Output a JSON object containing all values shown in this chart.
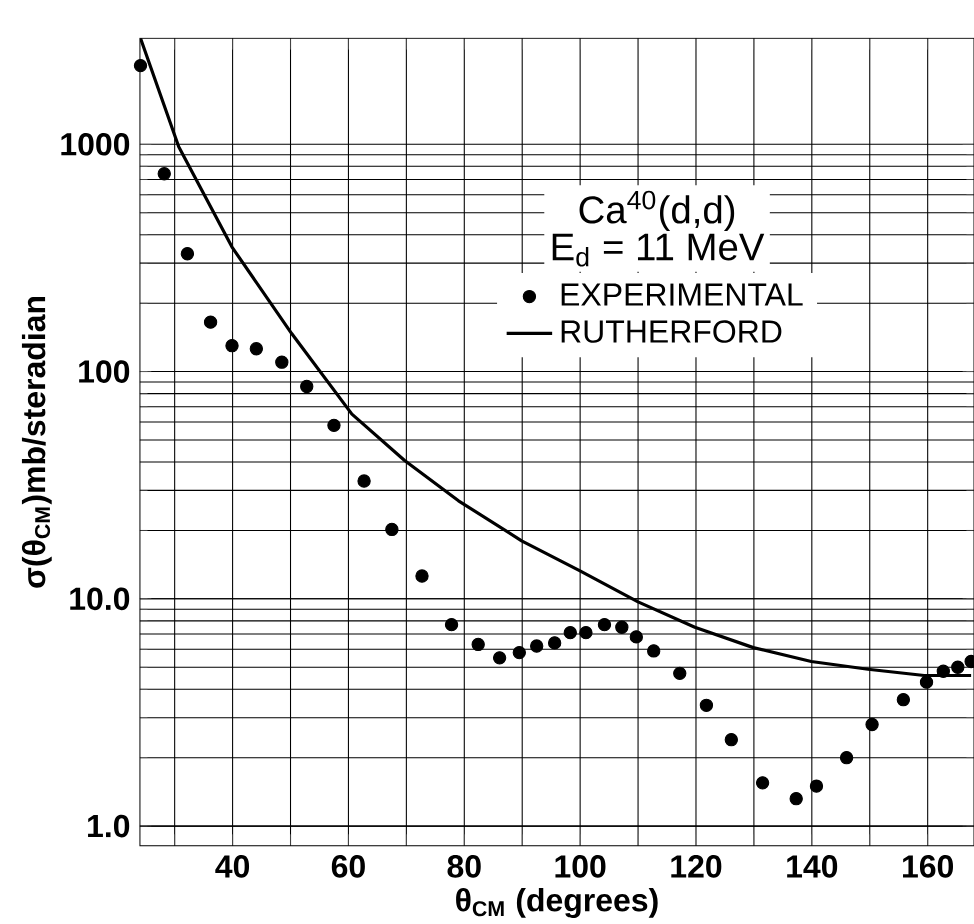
{
  "chart_data": {
    "type": "scatter",
    "xlabel": "θ$_{CM}$ (degrees)",
    "ylabel": "σ(θ$_{CM}$)mb/steradian",
    "annotations": [
      "Ca$^{40}$(d,d)",
      "E$_{d}$ = 11 MeV"
    ],
    "xlim": [
      24,
      168
    ],
    "ylim": [
      0.82,
      2930
    ],
    "log": true,
    "grid": true,
    "legend": "top right",
    "xticks": [
      {
        "value": 30,
        "label": null
      },
      40,
      {
        "value": 50,
        "label": null
      },
      60,
      {
        "value": 70,
        "label": null
      },
      80,
      {
        "value": 90,
        "label": null
      },
      100,
      {
        "value": 110,
        "label": null
      },
      120,
      {
        "value": 130,
        "label": null
      },
      140,
      {
        "value": 150,
        "label": null
      },
      160
    ],
    "yticks": [
      {
        "value": 1,
        "label": "1.0"
      },
      {
        "value": 10,
        "label": "10.0"
      },
      100,
      1000
    ],
    "series": [
      {
        "name": "EXPERIMENTAL",
        "marker": "circle",
        "color": "#000000",
        "x": [
          24.1,
          28.2,
          32.2,
          36.2,
          39.9,
          44.1,
          48.5,
          52.8,
          57.5,
          62.7,
          67.5,
          72.7,
          77.8,
          82.4,
          86.1,
          89.5,
          92.5,
          95.6,
          98.3,
          101,
          104.2,
          107.2,
          109.7,
          112.7,
          117.2,
          121.8,
          126.1,
          131.5,
          137.3,
          140.8,
          146,
          150.4,
          155.8,
          159.8,
          162.7,
          165.2,
          167.5
        ],
        "values": [
          2220,
          742,
          330,
          165,
          130,
          126,
          110,
          86,
          58,
          33,
          20.2,
          12.6,
          7.7,
          6.3,
          5.5,
          5.8,
          6.2,
          6.4,
          7.1,
          7.1,
          7.7,
          7.5,
          6.8,
          5.9,
          4.7,
          3.4,
          2.4,
          1.55,
          1.32,
          1.5,
          2.0,
          2.8,
          3.6,
          4.3,
          4.8,
          5.0,
          5.3
        ]
      },
      {
        "name": "RUTHERFORD",
        "type": "line",
        "marker": "none",
        "color": "#000000",
        "x": [
          24.1,
          30.7,
          39.9,
          50.2,
          60.6,
          69.7,
          79,
          89.9,
          99.9,
          110,
          119.8,
          129.9,
          139.9,
          149.7,
          159.4,
          167.5
        ],
        "values": [
          2930,
          975,
          353,
          147,
          65,
          40.6,
          27,
          18,
          13.3,
          9.7,
          7.5,
          6.1,
          5.3,
          4.9,
          4.6,
          4.6
        ]
      }
    ]
  }
}
